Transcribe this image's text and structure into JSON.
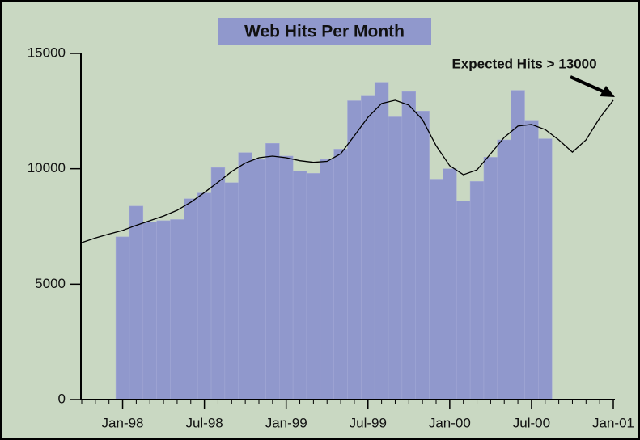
{
  "chart_data": {
    "type": "bar",
    "title": "Web Hits Per Month",
    "annotation": "Expected Hits > 13000",
    "categories": [
      null,
      null,
      null,
      "Jan-98",
      null,
      null,
      null,
      null,
      null,
      "Jul-98",
      null,
      null,
      null,
      null,
      null,
      "Jan-99",
      null,
      null,
      null,
      null,
      null,
      "Jul-99",
      null,
      null,
      null,
      null,
      null,
      "Jan-00",
      null,
      null,
      null,
      null,
      null,
      "Jul-00",
      null,
      null,
      null,
      null,
      null,
      "Jan-01"
    ],
    "series": [
      {
        "type": "bar",
        "color": "#9098cc",
        "values": [
          null,
          null,
          null,
          7050,
          8380,
          7700,
          7750,
          7800,
          8700,
          8950,
          10050,
          9400,
          10700,
          10400,
          11100,
          10550,
          9900,
          9800,
          10400,
          10850,
          12950,
          13150,
          13750,
          12250,
          13350,
          12500,
          9550,
          10000,
          8600,
          9450,
          10500,
          11250,
          13400,
          12100,
          11300,
          null,
          null,
          null,
          null,
          null
        ]
      },
      {
        "type": "line",
        "color": "#000000",
        "values": [
          6800,
          7000,
          7170,
          7330,
          7550,
          7750,
          7950,
          8200,
          8550,
          8970,
          9420,
          9880,
          10250,
          10480,
          10550,
          10480,
          10350,
          10280,
          10320,
          10650,
          11430,
          12230,
          12830,
          12970,
          12760,
          12130,
          11000,
          10130,
          9740,
          9950,
          10650,
          11360,
          11850,
          11920,
          11700,
          11250,
          10720,
          11250,
          12200,
          12970
        ]
      }
    ],
    "ylim": [
      0,
      15000
    ],
    "yticks": [
      0,
      5000,
      10000,
      15000
    ],
    "grid": false,
    "background": "#c9d8c2"
  }
}
